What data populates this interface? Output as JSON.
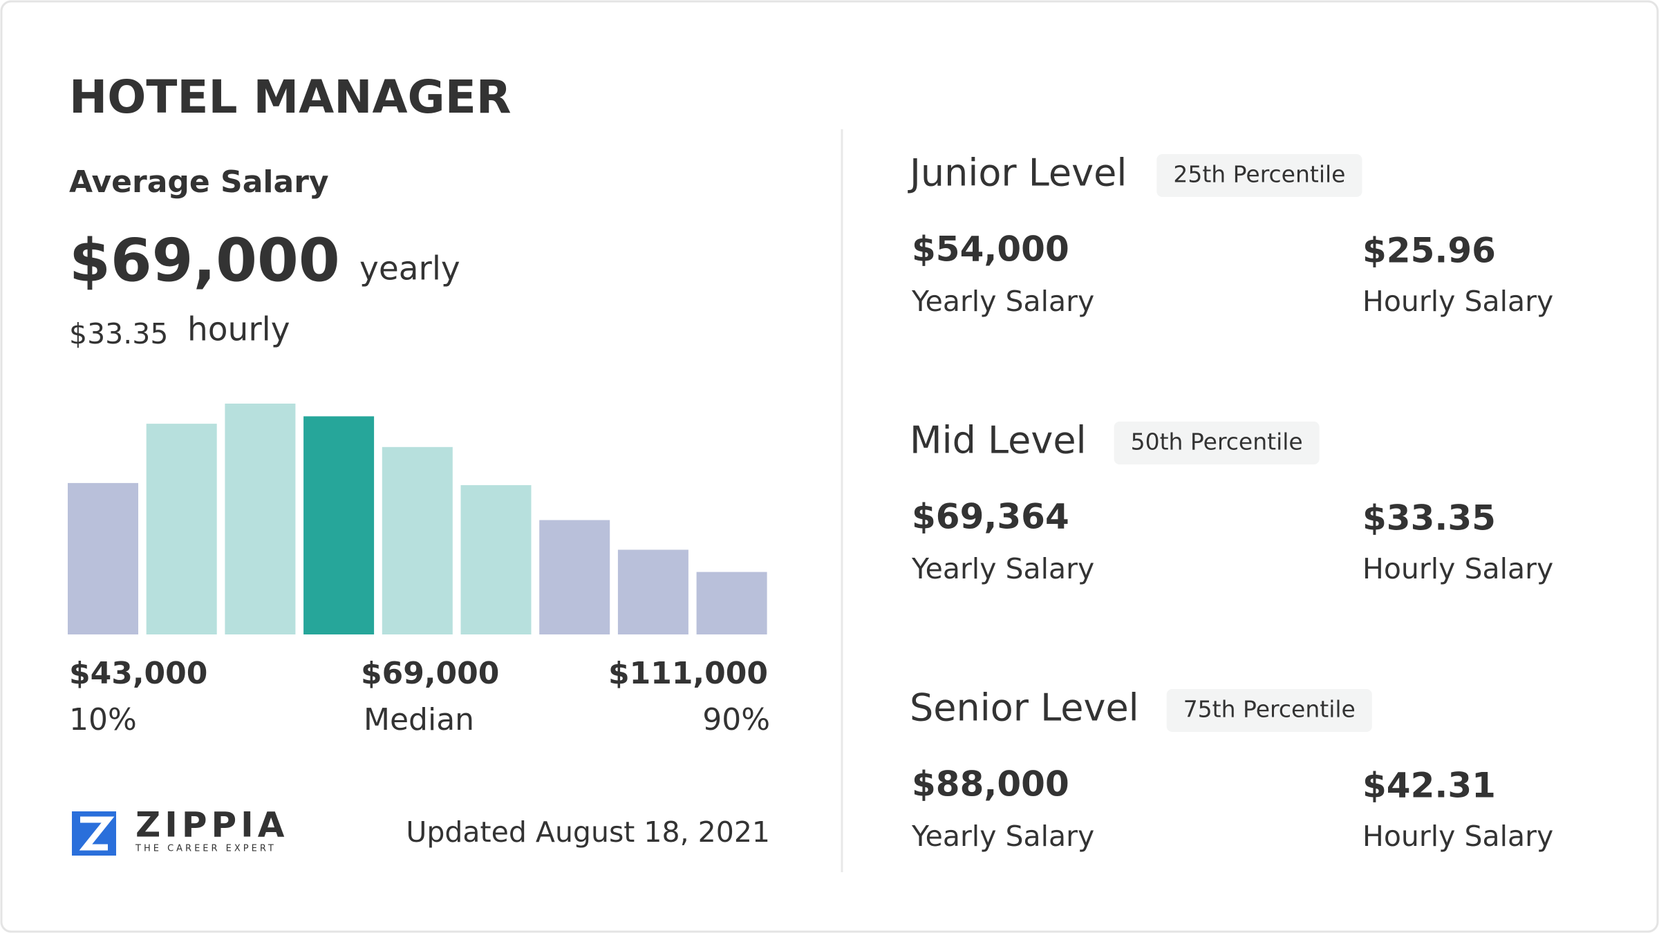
{
  "title": "HOTEL MANAGER",
  "average": {
    "label": "Average Salary",
    "yearly_value": "$69,000",
    "yearly_unit": "yearly",
    "hourly_value": "$33.35",
    "hourly_unit": "hourly"
  },
  "distribution": {
    "values": [
      143,
      199,
      218,
      206,
      177,
      141,
      108,
      80,
      59
    ],
    "colors": [
      "#b9c0da",
      "#b7e0dd",
      "#b7e0dd",
      "#26a69a",
      "#b7e0dd",
      "#b7e0dd",
      "#b9c0da",
      "#b9c0da",
      "#b9c0da"
    ]
  },
  "range_labels": [
    {
      "amount": "$43,000",
      "label": "10%"
    },
    {
      "amount": "$69,000",
      "label": "Median"
    },
    {
      "amount": "$111,000",
      "label": "90%"
    }
  ],
  "brand": {
    "name": "ZIPPIA",
    "tagline": "THE CAREER EXPERT"
  },
  "updated": "Updated August 18, 2021",
  "levels": [
    {
      "name": "Junior Level",
      "percentile": "25th Percentile",
      "yearly": "$54,000",
      "yearly_label": "Yearly Salary",
      "hourly": "$25.96",
      "hourly_label": "Hourly Salary"
    },
    {
      "name": "Mid Level",
      "percentile": "50th Percentile",
      "yearly": "$69,364",
      "yearly_label": "Yearly Salary",
      "hourly": "$33.35",
      "hourly_label": "Hourly Salary"
    },
    {
      "name": "Senior Level",
      "percentile": "75th Percentile",
      "yearly": "$88,000",
      "yearly_label": "Yearly Salary",
      "hourly": "$42.31",
      "hourly_label": "Hourly Salary"
    }
  ]
}
